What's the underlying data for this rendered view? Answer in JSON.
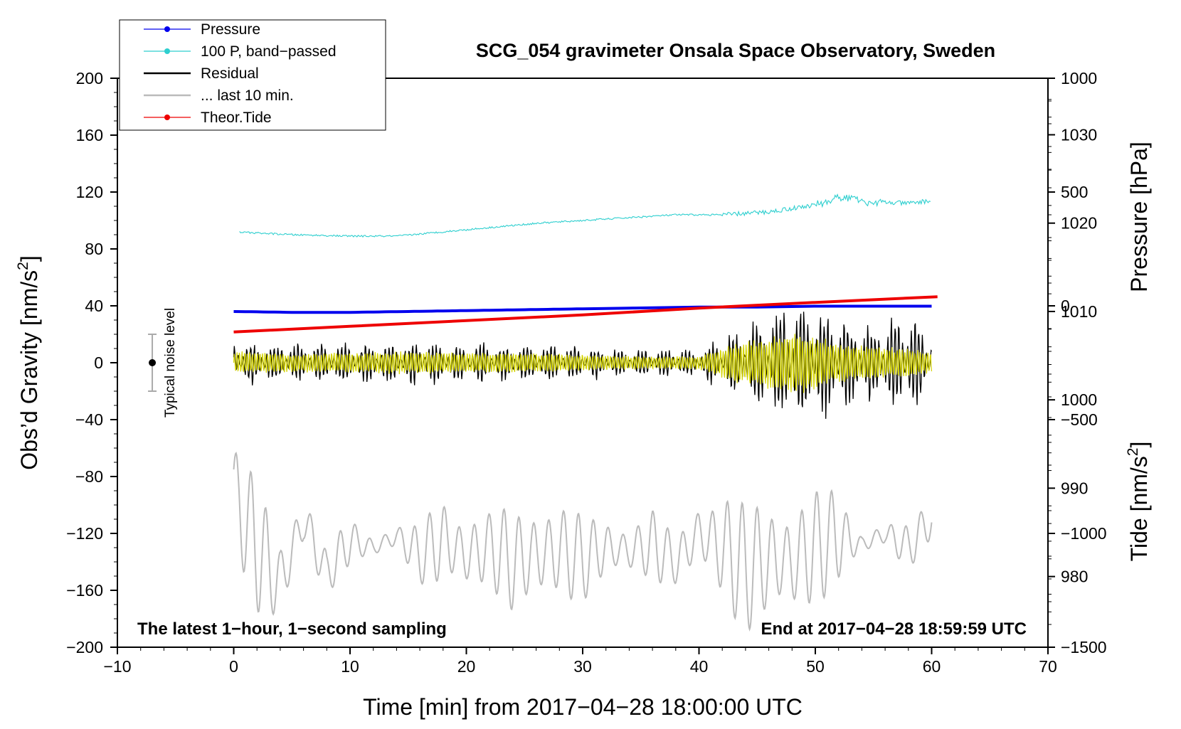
{
  "chart_data": {
    "type": "line",
    "title": "SCG_054 gravimeter Onsala Space Observatory, Sweden",
    "xlabel": "Time [min] from 2017−04−28 18:00:00 UTC",
    "ylabel_left": "Obs’d Gravity [nm/s",
    "ylabel_left_sup": "2",
    "ylabel_left_close": "]",
    "ylabel_right_pressure": "Pressure [hPa]",
    "ylabel_right_tide": "Tide [nm/s",
    "ylabel_right_tide_sup": "2",
    "ylabel_right_tide_close": "]",
    "xlim": [
      -10,
      70
    ],
    "ylim_left": [
      -200,
      200
    ],
    "ylim_pressure": [
      972,
      1036.4
    ],
    "ylim_tide": [
      -1500,
      1000
    ],
    "x_ticks": [
      {
        "value": -10,
        "label": "−10"
      },
      {
        "value": 0,
        "label": "0"
      },
      {
        "value": 10,
        "label": "10"
      },
      {
        "value": 20,
        "label": "20"
      },
      {
        "value": 30,
        "label": "30"
      },
      {
        "value": 40,
        "label": "40"
      },
      {
        "value": 50,
        "label": "50"
      },
      {
        "value": 60,
        "label": "60"
      },
      {
        "value": 70,
        "label": "70"
      }
    ],
    "y_left_ticks": [
      {
        "value": 200,
        "label": "200"
      },
      {
        "value": 160,
        "label": "160"
      },
      {
        "value": 120,
        "label": "120"
      },
      {
        "value": 80,
        "label": "80"
      },
      {
        "value": 40,
        "label": "40"
      },
      {
        "value": 0,
        "label": "0"
      },
      {
        "value": -40,
        "label": "−40"
      },
      {
        "value": -80,
        "label": "−80"
      },
      {
        "value": -120,
        "label": "−120"
      },
      {
        "value": -160,
        "label": "−160"
      },
      {
        "value": -200,
        "label": "−200"
      }
    ],
    "y_pressure_ticks": [
      {
        "value": 1030,
        "label": "1030"
      },
      {
        "value": 1020,
        "label": "1020"
      },
      {
        "value": 1010,
        "label": "1010"
      },
      {
        "value": 1000,
        "label": "1000"
      },
      {
        "value": 990,
        "label": "990"
      },
      {
        "value": 980,
        "label": "980"
      }
    ],
    "y_tide_ticks": [
      {
        "value": 1000,
        "label": "1000"
      },
      {
        "value": 500,
        "label": "500"
      },
      {
        "value": 0,
        "label": "0"
      },
      {
        "value": -500,
        "label": "−500"
      },
      {
        "value": -1000,
        "label": "−1000"
      },
      {
        "value": -1500,
        "label": "−1500"
      }
    ],
    "legend": [
      {
        "label": "Pressure",
        "color": "#0000ee",
        "marker": true
      },
      {
        "label": "100 P, band−passed",
        "color": "#2ecfcf",
        "marker": true
      },
      {
        "label": "Residual",
        "color": "#000000",
        "marker": false
      },
      {
        "label": "... last 10 min.",
        "color": "#bbbbbb",
        "marker": false
      },
      {
        "label": "Theor.Tide",
        "color": "#ee0000",
        "marker": true
      }
    ],
    "annotations": {
      "left": "The latest 1−hour, 1−second sampling",
      "right": "End at 2017−04−28 18:59:59 UTC",
      "noise": "Typical noise level"
    },
    "noise_bar": {
      "x": -7,
      "center": 0,
      "half_range": 20
    },
    "series": [
      {
        "name": "Pressure",
        "axis": "pressure",
        "color": "#0000ee",
        "x": [
          0,
          5,
          10,
          15,
          20,
          25,
          30,
          35,
          40,
          45,
          50,
          55,
          60
        ],
        "y": [
          1010.0,
          1009.9,
          1009.9,
          1010.0,
          1010.1,
          1010.2,
          1010.3,
          1010.4,
          1010.5,
          1010.5,
          1010.6,
          1010.6,
          1010.6
        ]
      },
      {
        "name": "100 P, band−passed",
        "axis": "left",
        "color": "#2ecfcf",
        "x": [
          0,
          5,
          10,
          14,
          18,
          22,
          26,
          30,
          34,
          38,
          42,
          46,
          50,
          52,
          55,
          58,
          60
        ],
        "y": [
          92,
          90,
          89,
          89,
          92,
          95,
          98,
          100,
          102,
          104,
          104,
          106,
          111,
          116,
          113,
          112,
          114
        ]
      },
      {
        "name": "Residual",
        "axis": "left",
        "color": "#000000",
        "x": [
          0,
          5,
          10,
          15,
          20,
          25,
          30,
          35,
          40,
          43,
          46,
          48,
          50,
          52,
          55,
          58,
          60
        ],
        "amplitude": [
          13,
          12,
          12,
          13,
          12,
          12,
          10,
          9,
          8,
          20,
          32,
          40,
          35,
          28,
          24,
          30,
          18
        ]
      },
      {
        "name": "... last 10 min.",
        "axis": "left",
        "color": "#bbbbbb",
        "x": [
          0,
          2,
          4,
          6,
          8,
          10,
          12,
          14,
          16,
          18,
          20,
          22,
          24,
          26,
          28,
          30,
          32,
          34,
          36,
          38,
          40,
          42,
          44,
          46,
          48,
          50,
          52,
          54,
          56,
          58,
          60
        ],
        "y": [
          -92,
          -130,
          -155,
          -110,
          -148,
          -125,
          -130,
          -122,
          -135,
          -125,
          -135,
          -130,
          -140,
          -135,
          -132,
          -138,
          -130,
          -132,
          -128,
          -140,
          -120,
          -130,
          -145,
          -138,
          -140,
          -130,
          -122,
          -128,
          -120,
          -130,
          -110
        ],
        "amplitude": [
          40,
          45,
          35,
          25,
          15,
          18,
          10,
          8,
          20,
          40,
          30,
          25,
          40,
          45,
          35,
          30,
          25,
          20,
          25,
          18,
          30,
          40,
          45,
          50,
          45,
          40,
          35,
          10,
          8,
          15,
          20
        ]
      },
      {
        "name": "Theor.Tide",
        "axis": "tide",
        "color": "#ee0000",
        "x": [
          0,
          10,
          20,
          30,
          40,
          50,
          60.5
        ],
        "y": [
          -115,
          -90,
          -65,
          -40,
          -10,
          15,
          40
        ]
      },
      {
        "name": "Yellow",
        "axis": "left",
        "color": "#d4d400",
        "x": [
          0,
          5,
          10,
          15,
          20,
          25,
          30,
          35,
          40,
          43,
          46,
          48,
          50,
          52,
          55,
          58,
          60
        ],
        "amplitude": [
          7,
          6,
          6,
          7,
          6,
          6,
          5,
          4,
          4,
          12,
          16,
          20,
          16,
          12,
          10,
          9,
          6
        ]
      }
    ]
  }
}
